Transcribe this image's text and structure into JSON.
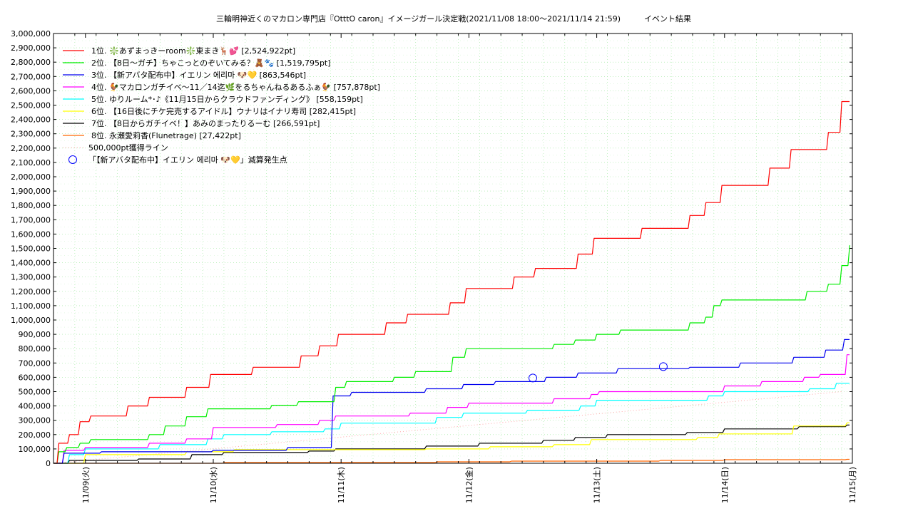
{
  "chart_data": {
    "type": "line",
    "title": "三輪明神近くのマカロン専門店『OtttO caron』イメージガール決定戦(2021/11/08 18:00～2021/11/14 21:59)　　　イベント結果",
    "xlabel": "",
    "ylabel": "",
    "ylim": [
      0,
      3000000
    ],
    "yticks": [
      "0",
      "100,000",
      "200,000",
      "300,000",
      "400,000",
      "500,000",
      "600,000",
      "700,000",
      "800,000",
      "900,000",
      "1,000,000",
      "1,100,000",
      "1,200,000",
      "1,300,000",
      "1,400,000",
      "1,500,000",
      "1,600,000",
      "1,700,000",
      "1,800,000",
      "1,900,000",
      "2,000,000",
      "2,100,000",
      "2,200,000",
      "2,300,000",
      "2,400,000",
      "2,500,000",
      "2,600,000",
      "2,700,000",
      "2,800,000",
      "2,900,000",
      "3,000,000"
    ],
    "xlim": [
      "2021/11/08 18:00",
      "2021/11/15 00:00"
    ],
    "xticks": [
      {
        "label": "11/09(火)",
        "at": "2021/11/09 00:00"
      },
      {
        "label": "11/10(水)",
        "at": "2021/11/10 00:00"
      },
      {
        "label": "11/11(木)",
        "at": "2021/11/11 00:00"
      },
      {
        "label": "11/12(金)",
        "at": "2021/11/12 00:00"
      },
      {
        "label": "11/13(土)",
        "at": "2021/11/13 00:00"
      },
      {
        "label": "11/14(日)",
        "at": "2021/11/14 00:00"
      },
      {
        "label": "11/15(月)",
        "at": "2021/11/15 00:00"
      }
    ],
    "grid": true,
    "legend_position": "top-left",
    "series": [
      {
        "name": "1位. ❇️あずまっきーroom❇️東まき🦌💕 [2,524,922pt]",
        "color": "#ff0000",
        "points": [
          [
            "2021/11/08 18:00",
            0
          ],
          [
            "2021/11/08 19:00",
            140000
          ],
          [
            "2021/11/08 21:00",
            200000
          ],
          [
            "2021/11/08 23:00",
            290000
          ],
          [
            "2021/11/09 01:00",
            330000
          ],
          [
            "2021/11/09 08:00",
            400000
          ],
          [
            "2021/11/09 12:00",
            460000
          ],
          [
            "2021/11/09 19:00",
            530000
          ],
          [
            "2021/11/09 23:30",
            620000
          ],
          [
            "2021/11/10 07:30",
            670000
          ],
          [
            "2021/11/10 16:30",
            750000
          ],
          [
            "2021/11/10 20:00",
            820000
          ],
          [
            "2021/11/10 23:30",
            900000
          ],
          [
            "2021/11/11 08:30",
            980000
          ],
          [
            "2021/11/11 12:30",
            1040000
          ],
          [
            "2021/11/11 20:30",
            1120000
          ],
          [
            "2021/11/11 23:30",
            1220000
          ],
          [
            "2021/11/12 08:30",
            1300000
          ],
          [
            "2021/11/12 12:30",
            1360000
          ],
          [
            "2021/11/12 20:30",
            1460000
          ],
          [
            "2021/11/12 23:30",
            1570000
          ],
          [
            "2021/11/13 08:30",
            1640000
          ],
          [
            "2021/11/13 17:30",
            1730000
          ],
          [
            "2021/11/13 20:30",
            1820000
          ],
          [
            "2021/11/13 23:30",
            1940000
          ],
          [
            "2021/11/14 08:30",
            2060000
          ],
          [
            "2021/11/14 12:30",
            2190000
          ],
          [
            "2021/11/14 19:30",
            2310000
          ],
          [
            "2021/11/14 22:00",
            2524922
          ]
        ]
      },
      {
        "name": "2位. 【8日〜ガチ】ちゃこっとのぞいてみる？🧸🐾 [1,519,795pt]",
        "color": "#00ee00",
        "points": [
          [
            "2021/11/08 18:00",
            0
          ],
          [
            "2021/11/08 19:00",
            80000
          ],
          [
            "2021/11/08 20:30",
            110000
          ],
          [
            "2021/11/08 23:00",
            140000
          ],
          [
            "2021/11/09 01:00",
            165000
          ],
          [
            "2021/11/09 12:00",
            200000
          ],
          [
            "2021/11/09 15:00",
            260000
          ],
          [
            "2021/11/09 19:00",
            325000
          ],
          [
            "2021/11/09 23:00",
            380000
          ],
          [
            "2021/11/10 11:00",
            405000
          ],
          [
            "2021/11/10 16:00",
            430000
          ],
          [
            "2021/11/10 23:00",
            530000
          ],
          [
            "2021/11/11 01:00",
            570000
          ],
          [
            "2021/11/11 10:00",
            600000
          ],
          [
            "2021/11/11 14:00",
            640000
          ],
          [
            "2021/11/11 21:00",
            740000
          ],
          [
            "2021/11/11 23:30",
            800000
          ],
          [
            "2021/11/12 16:00",
            830000
          ],
          [
            "2021/11/12 20:00",
            860000
          ],
          [
            "2021/11/13 00:00",
            900000
          ],
          [
            "2021/11/13 04:30",
            930000
          ],
          [
            "2021/11/13 17:30",
            980000
          ],
          [
            "2021/11/13 20:30",
            1020000
          ],
          [
            "2021/11/13 22:00",
            1100000
          ],
          [
            "2021/11/13 23:30",
            1140000
          ],
          [
            "2021/11/14 15:30",
            1200000
          ],
          [
            "2021/11/14 19:30",
            1250000
          ],
          [
            "2021/11/14 22:00",
            1380000
          ],
          [
            "2021/11/14 23:30",
            1519795
          ]
        ]
      },
      {
        "name": "3位. 【新アバタ配布中】イエリン 에리마 🐶💛 [863,546pt]",
        "color": "#0000ee",
        "points": [
          [
            "2021/11/08 18:00",
            0
          ],
          [
            "2021/11/08 20:00",
            70000
          ],
          [
            "2021/11/09 03:00",
            80000
          ],
          [
            "2021/11/10 00:00",
            90000
          ],
          [
            "2021/11/10 14:00",
            110000
          ],
          [
            "2021/11/10 22:30",
            470000
          ],
          [
            "2021/11/11 02:00",
            495000
          ],
          [
            "2021/11/11 16:00",
            520000
          ],
          [
            "2021/11/11 23:00",
            550000
          ],
          [
            "2021/11/12 05:00",
            570000
          ],
          [
            "2021/11/12 14:30",
            600000
          ],
          [
            "2021/11/12 20:30",
            630000
          ],
          [
            "2021/11/13 04:00",
            660000
          ],
          [
            "2021/11/13 17:30",
            670000
          ],
          [
            "2021/11/14 03:00",
            700000
          ],
          [
            "2021/11/14 13:00",
            740000
          ],
          [
            "2021/11/14 19:00",
            790000
          ],
          [
            "2021/11/14 22:30",
            863546
          ]
        ]
      },
      {
        "name": "4位. 🐓マカロンガチイベ〜11／14迄🌿をるちゃんねるあるふぁ🐓 [757,878pt]",
        "color": "#ff00ff",
        "points": [
          [
            "2021/11/08 18:00",
            0
          ],
          [
            "2021/11/08 20:00",
            90000
          ],
          [
            "2021/11/09 00:00",
            110000
          ],
          [
            "2021/11/09 12:00",
            140000
          ],
          [
            "2021/11/09 19:00",
            170000
          ],
          [
            "2021/11/10 00:00",
            250000
          ],
          [
            "2021/11/10 12:00",
            270000
          ],
          [
            "2021/11/10 20:00",
            300000
          ],
          [
            "2021/11/10 23:00",
            330000
          ],
          [
            "2021/11/11 13:00",
            350000
          ],
          [
            "2021/11/11 20:00",
            390000
          ],
          [
            "2021/11/12 00:00",
            420000
          ],
          [
            "2021/11/12 16:00",
            450000
          ],
          [
            "2021/11/12 23:00",
            480000
          ],
          [
            "2021/11/13 00:30",
            500000
          ],
          [
            "2021/11/14 00:00",
            540000
          ],
          [
            "2021/11/14 07:00",
            570000
          ],
          [
            "2021/11/14 15:00",
            600000
          ],
          [
            "2021/11/14 18:00",
            620000
          ],
          [
            "2021/11/14 23:00",
            757878
          ]
        ]
      },
      {
        "name": "5位. ゆりルーム*･♪《11月15日からクラウドファンディング》 [558,159pt]",
        "color": "#00ffff",
        "points": [
          [
            "2021/11/08 18:00",
            0
          ],
          [
            "2021/11/08 21:00",
            60000
          ],
          [
            "2021/11/09 00:00",
            100000
          ],
          [
            "2021/11/09 14:00",
            130000
          ],
          [
            "2021/11/09 23:00",
            170000
          ],
          [
            "2021/11/10 02:00",
            200000
          ],
          [
            "2021/11/10 11:00",
            220000
          ],
          [
            "2021/11/10 21:00",
            240000
          ],
          [
            "2021/11/11 00:00",
            280000
          ],
          [
            "2021/11/11 18:00",
            320000
          ],
          [
            "2021/11/11 23:00",
            350000
          ],
          [
            "2021/11/12 11:00",
            370000
          ],
          [
            "2021/11/12 21:00",
            400000
          ],
          [
            "2021/11/13 00:00",
            440000
          ],
          [
            "2021/11/13 21:00",
            470000
          ],
          [
            "2021/11/14 00:00",
            500000
          ],
          [
            "2021/11/14 16:00",
            520000
          ],
          [
            "2021/11/14 21:00",
            558159
          ]
        ]
      },
      {
        "name": "6位. 【16日後にチケ完売するアイドル】ウナリはイナリ寿司 [282,415pt]",
        "color": "#ffff00",
        "points": [
          [
            "2021/11/08 18:00",
            0
          ],
          [
            "2021/11/09 00:00",
            60000
          ],
          [
            "2021/11/09 19:00",
            80000
          ],
          [
            "2021/11/10 04:00",
            95000
          ],
          [
            "2021/11/11 16:00",
            100000
          ],
          [
            "2021/11/12 04:00",
            115000
          ],
          [
            "2021/11/12 16:00",
            130000
          ],
          [
            "2021/11/12 23:00",
            165000
          ],
          [
            "2021/11/13 19:00",
            180000
          ],
          [
            "2021/11/13 23:00",
            205000
          ],
          [
            "2021/11/14 13:00",
            260000
          ],
          [
            "2021/11/14 23:00",
            282415
          ]
        ]
      },
      {
        "name": "7位. 【8日からガチイベ！】あみのまったりるーむ [266,591pt]",
        "color": "#000000",
        "points": [
          [
            "2021/11/08 18:00",
            0
          ],
          [
            "2021/11/08 21:00",
            20000
          ],
          [
            "2021/11/09 10:00",
            30000
          ],
          [
            "2021/11/09 20:00",
            60000
          ],
          [
            "2021/11/10 02:00",
            75000
          ],
          [
            "2021/11/10 18:00",
            85000
          ],
          [
            "2021/11/10 23:00",
            100000
          ],
          [
            "2021/11/11 16:00",
            120000
          ],
          [
            "2021/11/12 02:00",
            140000
          ],
          [
            "2021/11/12 14:00",
            160000
          ],
          [
            "2021/11/12 20:00",
            180000
          ],
          [
            "2021/11/13 02:00",
            200000
          ],
          [
            "2021/11/13 17:00",
            215000
          ],
          [
            "2021/11/14 00:00",
            240000
          ],
          [
            "2021/11/14 14:00",
            255000
          ],
          [
            "2021/11/14 23:00",
            266591
          ]
        ]
      },
      {
        "name": "8位. 永瀬愛莉香(Flunetrage) [27,422pt]",
        "color": "#ff6600",
        "points": [
          [
            "2021/11/08 18:00",
            0
          ],
          [
            "2021/11/10 02:00",
            5000
          ],
          [
            "2021/11/11 18:00",
            10000
          ],
          [
            "2021/11/12 08:00",
            15000
          ],
          [
            "2021/11/13 12:00",
            20000
          ],
          [
            "2021/11/14 00:00",
            25000
          ],
          [
            "2021/11/14 23:00",
            27422
          ]
        ]
      }
    ],
    "reference_line": {
      "name": "500,000pt獲得ライン",
      "color": "#ffaaaa",
      "from": [
        "2021/11/08 18:00",
        0
      ],
      "to": [
        "2021/11/14 22:00",
        500000
      ]
    },
    "markers": {
      "name": "「【新アバタ配布中】イエリン 에리마 🐶💛」減算発生点",
      "color": "#0000ff",
      "points": [
        [
          "2021/11/12 12:00",
          595000
        ],
        [
          "2021/11/13 12:30",
          675000
        ]
      ]
    }
  }
}
